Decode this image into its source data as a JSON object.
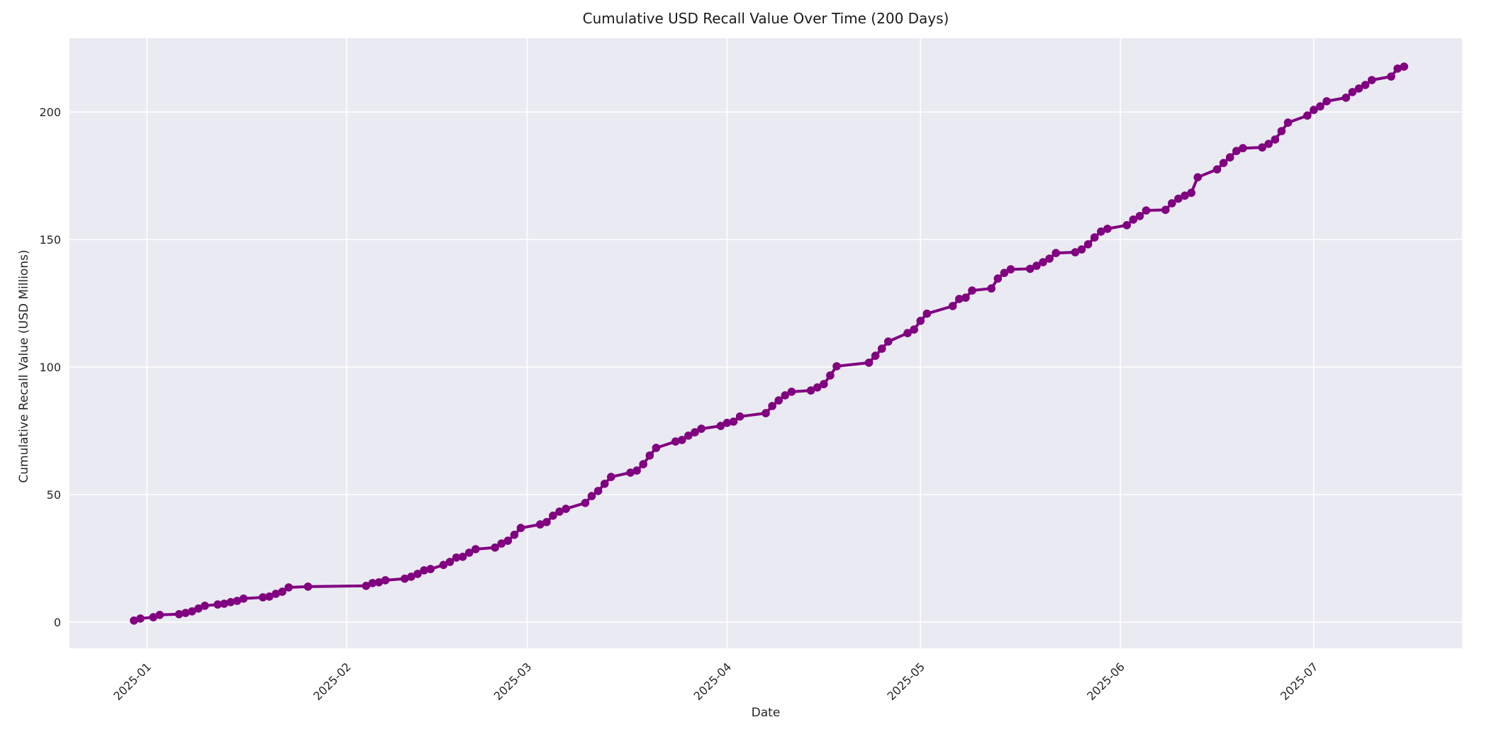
{
  "chart_data": {
    "type": "line",
    "title": "Cumulative USD Recall Value Over Time (200 Days)",
    "xlabel": "Date",
    "ylabel": "Cumulative Recall Value (USD Millions)",
    "legend": null,
    "grid": true,
    "colors": {
      "line": "#800080",
      "marker": "#800080",
      "plot_background": "#EAEAF2",
      "gridline": "#FFFFFF",
      "text": "#262626"
    },
    "x_range": [
      "2024-12-20",
      "2025-07-24"
    ],
    "ylim": [
      -10.3,
      228.9
    ],
    "y_ticks": [
      0,
      50,
      100,
      150,
      200
    ],
    "x_ticks": [
      {
        "date": "2025-01-01",
        "label": "2025-01"
      },
      {
        "date": "2025-02-01",
        "label": "2025-02"
      },
      {
        "date": "2025-03-01",
        "label": "2025-03"
      },
      {
        "date": "2025-04-01",
        "label": "2025-04"
      },
      {
        "date": "2025-05-01",
        "label": "2025-05"
      },
      {
        "date": "2025-06-01",
        "label": "2025-06"
      },
      {
        "date": "2025-07-01",
        "label": "2025-07"
      }
    ],
    "series": [
      {
        "name": "cumulative_recall_value_usd_millions",
        "points": [
          [
            "2024-12-30",
            0.6
          ],
          [
            "2024-12-31",
            1.4
          ],
          [
            "2025-01-02",
            1.9
          ],
          [
            "2025-01-03",
            2.8
          ],
          [
            "2025-01-06",
            3.1
          ],
          [
            "2025-01-07",
            3.6
          ],
          [
            "2025-01-08",
            4.2
          ],
          [
            "2025-01-09",
            5.3
          ],
          [
            "2025-01-10",
            6.4
          ],
          [
            "2025-01-12",
            6.9
          ],
          [
            "2025-01-13",
            7.2
          ],
          [
            "2025-01-14",
            7.8
          ],
          [
            "2025-01-15",
            8.3
          ],
          [
            "2025-01-16",
            9.2
          ],
          [
            "2025-01-19",
            9.7
          ],
          [
            "2025-01-20",
            10.0
          ],
          [
            "2025-01-21",
            11.1
          ],
          [
            "2025-01-22",
            11.9
          ],
          [
            "2025-01-23",
            13.6
          ],
          [
            "2025-01-26",
            13.9
          ],
          [
            "2025-02-04",
            14.2
          ],
          [
            "2025-02-05",
            15.3
          ],
          [
            "2025-02-06",
            15.6
          ],
          [
            "2025-02-07",
            16.4
          ],
          [
            "2025-02-10",
            17.0
          ],
          [
            "2025-02-11",
            17.8
          ],
          [
            "2025-02-12",
            18.9
          ],
          [
            "2025-02-13",
            20.3
          ],
          [
            "2025-02-14",
            20.8
          ],
          [
            "2025-02-16",
            22.4
          ],
          [
            "2025-02-17",
            23.6
          ],
          [
            "2025-02-18",
            25.3
          ],
          [
            "2025-02-19",
            25.6
          ],
          [
            "2025-02-20",
            27.2
          ],
          [
            "2025-02-21",
            28.6
          ],
          [
            "2025-02-24",
            29.2
          ],
          [
            "2025-02-25",
            30.8
          ],
          [
            "2025-02-26",
            31.9
          ],
          [
            "2025-02-27",
            34.2
          ],
          [
            "2025-02-28",
            36.9
          ],
          [
            "2025-03-03",
            38.3
          ],
          [
            "2025-03-04",
            39.2
          ],
          [
            "2025-03-05",
            41.7
          ],
          [
            "2025-03-06",
            43.3
          ],
          [
            "2025-03-07",
            44.4
          ],
          [
            "2025-03-10",
            46.7
          ],
          [
            "2025-03-11",
            49.4
          ],
          [
            "2025-03-12",
            51.4
          ],
          [
            "2025-03-13",
            54.2
          ],
          [
            "2025-03-14",
            56.9
          ],
          [
            "2025-03-17",
            58.6
          ],
          [
            "2025-03-18",
            59.4
          ],
          [
            "2025-03-19",
            61.9
          ],
          [
            "2025-03-20",
            65.3
          ],
          [
            "2025-03-21",
            68.3
          ],
          [
            "2025-03-24",
            70.8
          ],
          [
            "2025-03-25",
            71.4
          ],
          [
            "2025-03-26",
            73.1
          ],
          [
            "2025-03-27",
            74.4
          ],
          [
            "2025-03-28",
            75.8
          ],
          [
            "2025-03-31",
            76.9
          ],
          [
            "2025-04-01",
            78.1
          ],
          [
            "2025-04-02",
            78.6
          ],
          [
            "2025-04-03",
            80.6
          ],
          [
            "2025-04-07",
            81.9
          ],
          [
            "2025-04-08",
            84.7
          ],
          [
            "2025-04-09",
            86.9
          ],
          [
            "2025-04-10",
            88.9
          ],
          [
            "2025-04-11",
            90.3
          ],
          [
            "2025-04-14",
            90.8
          ],
          [
            "2025-04-15",
            92.0
          ],
          [
            "2025-04-16",
            93.3
          ],
          [
            "2025-04-17",
            96.7
          ],
          [
            "2025-04-18",
            100.3
          ],
          [
            "2025-04-23",
            101.7
          ],
          [
            "2025-04-24",
            104.4
          ],
          [
            "2025-04-25",
            107.2
          ],
          [
            "2025-04-26",
            110.0
          ],
          [
            "2025-04-29",
            113.3
          ],
          [
            "2025-04-30",
            114.7
          ],
          [
            "2025-05-01",
            118.1
          ],
          [
            "2025-05-02",
            120.9
          ],
          [
            "2025-05-06",
            123.9
          ],
          [
            "2025-05-07",
            126.7
          ],
          [
            "2025-05-08",
            127.2
          ],
          [
            "2025-05-09",
            130.0
          ],
          [
            "2025-05-12",
            130.8
          ],
          [
            "2025-05-13",
            134.7
          ],
          [
            "2025-05-14",
            136.9
          ],
          [
            "2025-05-15",
            138.3
          ],
          [
            "2025-05-18",
            138.5
          ],
          [
            "2025-05-19",
            139.7
          ],
          [
            "2025-05-20",
            141.1
          ],
          [
            "2025-05-21",
            142.5
          ],
          [
            "2025-05-22",
            144.7
          ],
          [
            "2025-05-25",
            145.0
          ],
          [
            "2025-05-26",
            146.1
          ],
          [
            "2025-05-27",
            148.1
          ],
          [
            "2025-05-28",
            150.8
          ],
          [
            "2025-05-29",
            153.1
          ],
          [
            "2025-05-30",
            154.2
          ],
          [
            "2025-06-02",
            155.6
          ],
          [
            "2025-06-03",
            157.8
          ],
          [
            "2025-06-04",
            159.2
          ],
          [
            "2025-06-05",
            161.4
          ],
          [
            "2025-06-08",
            161.6
          ],
          [
            "2025-06-09",
            164.2
          ],
          [
            "2025-06-10",
            166.0
          ],
          [
            "2025-06-11",
            167.2
          ],
          [
            "2025-06-12",
            168.3
          ],
          [
            "2025-06-13",
            174.4
          ],
          [
            "2025-06-16",
            177.5
          ],
          [
            "2025-06-17",
            180.0
          ],
          [
            "2025-06-18",
            182.2
          ],
          [
            "2025-06-19",
            184.7
          ],
          [
            "2025-06-20",
            185.8
          ],
          [
            "2025-06-23",
            186.1
          ],
          [
            "2025-06-24",
            187.5
          ],
          [
            "2025-06-25",
            189.2
          ],
          [
            "2025-06-26",
            192.5
          ],
          [
            "2025-06-27",
            195.8
          ],
          [
            "2025-06-30",
            198.6
          ],
          [
            "2025-07-01",
            200.8
          ],
          [
            "2025-07-02",
            202.2
          ],
          [
            "2025-07-03",
            204.2
          ],
          [
            "2025-07-06",
            205.6
          ],
          [
            "2025-07-07",
            207.8
          ],
          [
            "2025-07-08",
            209.2
          ],
          [
            "2025-07-09",
            210.6
          ],
          [
            "2025-07-10",
            212.5
          ],
          [
            "2025-07-13",
            213.9
          ],
          [
            "2025-07-14",
            217.0
          ],
          [
            "2025-07-15",
            217.8
          ]
        ]
      }
    ]
  }
}
